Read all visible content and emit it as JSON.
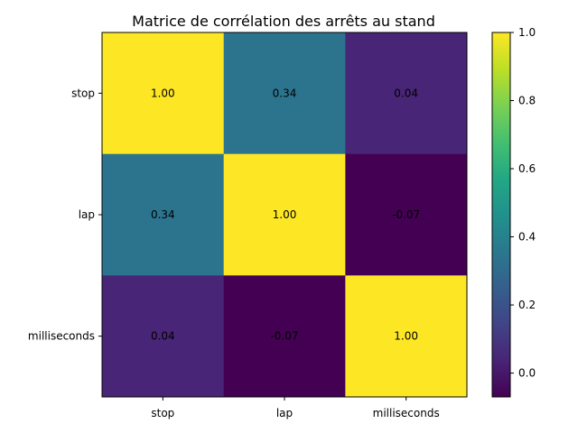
{
  "chart_data": {
    "type": "heatmap",
    "title": "Matrice de corrélation des arrêts au stand",
    "x_labels": [
      "stop",
      "lap",
      "milliseconds"
    ],
    "y_labels": [
      "stop",
      "lap",
      "milliseconds"
    ],
    "values": [
      [
        1.0,
        0.34,
        0.04
      ],
      [
        0.34,
        1.0,
        -0.07
      ],
      [
        0.04,
        -0.07,
        1.0
      ]
    ],
    "cell_labels": [
      [
        "1.00",
        "0.34",
        "0.04"
      ],
      [
        "0.34",
        "1.00",
        "-0.07"
      ],
      [
        "0.04",
        "-0.07",
        "1.00"
      ]
    ],
    "colormap": "viridis",
    "colorbar": {
      "range": [
        -0.07,
        1.0
      ],
      "ticks": [
        0.0,
        0.2,
        0.4,
        0.6,
        0.8,
        1.0
      ],
      "tick_labels": [
        "0.0",
        "0.2",
        "0.4",
        "0.6",
        "0.8",
        "1.0"
      ]
    },
    "grid": false
  }
}
